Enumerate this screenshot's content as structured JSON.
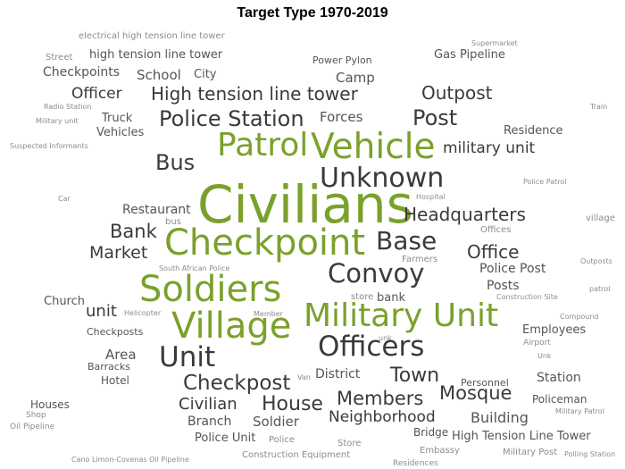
{
  "title": "Target Type 1970-2019",
  "colors": {
    "highlight": "#7aa12b",
    "primary": "#3a3a3a",
    "mid": "#555555",
    "light": "#8c8c8c"
  },
  "words": [
    {
      "text": "electrical high tension line tower",
      "weight": 2
    },
    {
      "text": "Supermarket",
      "weight": 1
    },
    {
      "text": "Street",
      "weight": 2
    },
    {
      "text": "high tension line tower",
      "weight": 3
    },
    {
      "text": "Power Pylon",
      "weight": 2
    },
    {
      "text": "Gas Pipeline",
      "weight": 3
    },
    {
      "text": "Checkpoints",
      "weight": 4
    },
    {
      "text": "School",
      "weight": 4
    },
    {
      "text": "City",
      "weight": 3
    },
    {
      "text": "Camp",
      "weight": 4
    },
    {
      "text": "Officer",
      "weight": 5
    },
    {
      "text": "High tension line tower",
      "weight": 6
    },
    {
      "text": "Outpost",
      "weight": 6
    },
    {
      "text": "Radio Station",
      "weight": 1
    },
    {
      "text": "Train",
      "weight": 1
    },
    {
      "text": "Truck",
      "weight": 3
    },
    {
      "text": "Police Station",
      "weight": 7
    },
    {
      "text": "Forces",
      "weight": 4
    },
    {
      "text": "Post",
      "weight": 7
    },
    {
      "text": "Military unit",
      "weight": 1
    },
    {
      "text": "Vehicles",
      "weight": 3
    },
    {
      "text": "Residence",
      "weight": 3
    },
    {
      "text": "Patrol",
      "weight": 10
    },
    {
      "text": "Vehicle",
      "weight": 11
    },
    {
      "text": "military unit",
      "weight": 5
    },
    {
      "text": "Suspected Informants",
      "weight": 1
    },
    {
      "text": "Bus",
      "weight": 6
    },
    {
      "text": "Unknown",
      "weight": 8
    },
    {
      "text": "Police Patrol",
      "weight": 1
    },
    {
      "text": "Car",
      "weight": 1
    },
    {
      "text": "Civilians",
      "weight": 14
    },
    {
      "text": "Hospital",
      "weight": 1
    },
    {
      "text": "Restaurant",
      "weight": 3
    },
    {
      "text": "Headquarters",
      "weight": 5
    },
    {
      "text": "village",
      "weight": 2
    },
    {
      "text": "bus",
      "weight": 2
    },
    {
      "text": "Bank",
      "weight": 5
    },
    {
      "text": "Checkpoint",
      "weight": 12
    },
    {
      "text": "Base",
      "weight": 7
    },
    {
      "text": "Offices",
      "weight": 2
    },
    {
      "text": "Market",
      "weight": 5
    },
    {
      "text": "Office",
      "weight": 5
    },
    {
      "text": "Farmers",
      "weight": 2
    },
    {
      "text": "Outposts",
      "weight": 1
    },
    {
      "text": "South African Police",
      "weight": 1
    },
    {
      "text": "Police Post",
      "weight": 3
    },
    {
      "text": "Convoy",
      "weight": 8
    },
    {
      "text": "Soldiers",
      "weight": 12
    },
    {
      "text": "Posts",
      "weight": 3
    },
    {
      "text": "patrol",
      "weight": 1
    },
    {
      "text": "store",
      "weight": 2
    },
    {
      "text": "bank",
      "weight": 3
    },
    {
      "text": "Construction Site",
      "weight": 1
    },
    {
      "text": "Church",
      "weight": 3
    },
    {
      "text": "unit",
      "weight": 5
    },
    {
      "text": "Helicopter",
      "weight": 1
    },
    {
      "text": "Member",
      "weight": 1
    },
    {
      "text": "Military Unit",
      "weight": 10
    },
    {
      "text": "Compound",
      "weight": 1
    },
    {
      "text": "Village",
      "weight": 12
    },
    {
      "text": "Checkposts",
      "weight": 2
    },
    {
      "text": "Employees",
      "weight": 3
    },
    {
      "text": "unk",
      "weight": 1
    },
    {
      "text": "Airport",
      "weight": 1
    },
    {
      "text": "Area",
      "weight": 4
    },
    {
      "text": "Officers",
      "weight": 9
    },
    {
      "text": "Unk",
      "weight": 1
    },
    {
      "text": "Unit",
      "weight": 9
    },
    {
      "text": "Barracks",
      "weight": 2
    },
    {
      "text": "District",
      "weight": 3
    },
    {
      "text": "Van",
      "weight": 1
    },
    {
      "text": "Town",
      "weight": 6
    },
    {
      "text": "Hotel",
      "weight": 3
    },
    {
      "text": "Personnel",
      "weight": 2
    },
    {
      "text": "Station",
      "weight": 3
    },
    {
      "text": "Checkpost",
      "weight": 7
    },
    {
      "text": "Mosque",
      "weight": 6
    },
    {
      "text": "Members",
      "weight": 6
    },
    {
      "text": "Policeman",
      "weight": 3
    },
    {
      "text": "Houses",
      "weight": 3
    },
    {
      "text": "Civilian",
      "weight": 5
    },
    {
      "text": "House",
      "weight": 6
    },
    {
      "text": "Military Patrol",
      "weight": 1
    },
    {
      "text": "Shop",
      "weight": 2
    },
    {
      "text": "Neighborhood",
      "weight": 5
    },
    {
      "text": "Building",
      "weight": 5
    },
    {
      "text": "Branch",
      "weight": 4
    },
    {
      "text": "Soldier",
      "weight": 4
    },
    {
      "text": "Oil Pipeline",
      "weight": 2
    },
    {
      "text": "Bridge",
      "weight": 3
    },
    {
      "text": "High Tension Line Tower",
      "weight": 4
    },
    {
      "text": "Police Unit",
      "weight": 3
    },
    {
      "text": "Police",
      "weight": 2
    },
    {
      "text": "Store",
      "weight": 2
    },
    {
      "text": "Embassy",
      "weight": 2
    },
    {
      "text": "Military Post",
      "weight": 2
    },
    {
      "text": "Polling Station",
      "weight": 1
    },
    {
      "text": "Cano Limon-Covenas Oil Pipeline",
      "weight": 1
    },
    {
      "text": "Construction Equipment",
      "weight": 2
    },
    {
      "text": "Residences",
      "weight": 2
    }
  ]
}
